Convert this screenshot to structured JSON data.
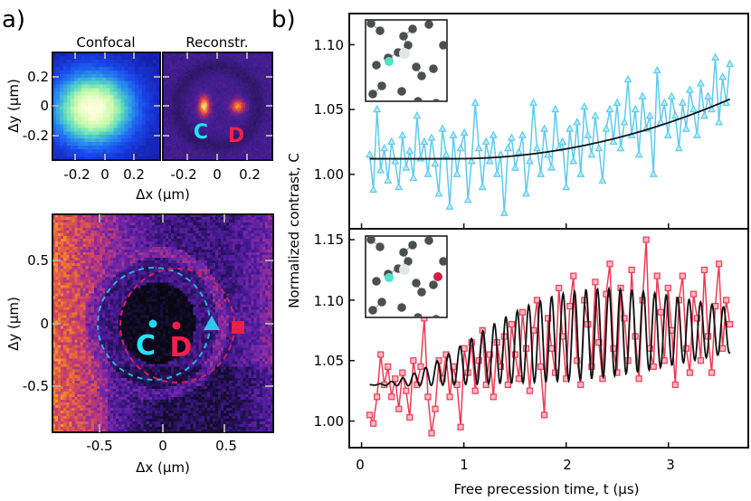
{
  "panel_labels": {
    "a": "a)",
    "b": "b)"
  },
  "panel_a": {
    "confocal": {
      "title": "Confocal",
      "xticks": [
        "-0.2",
        "0",
        "0.2"
      ],
      "yticks": [
        "0.2",
        "0",
        "-0.2"
      ],
      "colormap": "blue-green-yellow"
    },
    "reconstr": {
      "title": "Reconstr.",
      "xticks": [
        "-0.2",
        "0",
        "0.2"
      ],
      "colormap": "inferno",
      "labels": {
        "c": "C",
        "d": "D"
      }
    },
    "top_xlabel": "Δx (µm)",
    "top_ylabel": "Δy (µm)",
    "map": {
      "xticks": [
        "-0.5",
        "0",
        "0.5"
      ],
      "yticks": [
        "0.5",
        "0",
        "-0.5"
      ],
      "xlabel": "Δx (µm)",
      "ylabel": "Δy (µm)",
      "colormap": "plasma",
      "labels": {
        "c": "C",
        "d": "D"
      },
      "markers": [
        {
          "shape": "circle",
          "color": "#27d6ef"
        },
        {
          "shape": "circle",
          "color": "#ee1f46"
        },
        {
          "shape": "triangle",
          "color": "#33c6ec"
        },
        {
          "shape": "square",
          "color": "#ee1f46"
        }
      ]
    }
  },
  "colors": {
    "cyan": "#5ecbef",
    "red": "#ef3a55",
    "fit": "#111111",
    "c_label": "#22e5f5",
    "d_label": "#f0204b"
  },
  "chart_data": [
    {
      "type": "line",
      "panel": "b-top",
      "ylabel": "Normalized contrast, C",
      "xlabel": "Free precession time, t (µs)",
      "ylim": [
        0.958,
        1.124
      ],
      "xlim": [
        -0.12,
        3.78
      ],
      "yticks": [
        "1.00",
        "1.05",
        "1.10"
      ],
      "ytick_values": [
        1.0,
        1.05,
        1.1
      ],
      "xtick_values": [
        0,
        1,
        2,
        3
      ],
      "t_range": [
        0.08,
        3.6
      ],
      "marker": "triangle",
      "color": "#5ecbef",
      "y": [
        1.015,
        0.988,
        1.05,
        1.003,
        1.02,
        0.995,
        1.025,
        1.01,
        0.99,
        1.03,
        1.005,
        1.018,
        0.997,
        1.045,
        1.012,
        1.025,
        1.0,
        1.028,
        1.008,
        0.985,
        1.035,
        1.015,
        0.975,
        1.03,
        1.0,
        1.02,
        1.032,
        0.98,
        1.01,
        1.055,
        1.02,
        0.99,
        1.025,
        1.01,
        1.03,
        1.0,
        1.015,
        0.97,
        1.02,
        1.028,
        1.005,
        1.017,
        1.03,
        0.985,
        1.01,
        1.055,
        1.02,
        1.0,
        1.035,
        1.015,
        1.005,
        1.05,
        1.02,
        1.025,
        0.99,
        1.035,
        1.01,
        1.04,
        1.0,
        1.052,
        1.03,
        1.015,
        1.045,
        1.02,
        0.995,
        1.035,
        1.05,
        1.025,
        1.055,
        1.02,
        1.04,
        1.073,
        1.03,
        1.05,
        1.015,
        1.06,
        1.035,
        1.045,
        1.0,
        1.08,
        1.04,
        1.055,
        1.03,
        1.06,
        1.045,
        1.02,
        1.055,
        1.035,
        1.065,
        1.05,
        1.03,
        1.07,
        1.045,
        1.06,
        1.05,
        1.09,
        1.04,
        1.075,
        1.055,
        1.085
      ],
      "fit": {
        "form": "quadratic onset",
        "baseline": 1.012,
        "end_value": 1.058
      }
    },
    {
      "type": "line",
      "panel": "b-bottom",
      "ylim": [
        0.978,
        1.159
      ],
      "xlim": [
        -0.12,
        3.78
      ],
      "yticks": [
        "1.00",
        "1.05",
        "1.10",
        "1.15"
      ],
      "ytick_values": [
        1.0,
        1.05,
        1.1,
        1.15
      ],
      "xticks": [
        "0",
        "1",
        "2",
        "3"
      ],
      "xtick_values": [
        0,
        1,
        2,
        3
      ],
      "t_range": [
        0.08,
        3.6
      ],
      "marker": "square",
      "color": "#ef3a55",
      "y": [
        1.005,
        0.998,
        1.02,
        1.055,
        1.03,
        1.045,
        1.02,
        1.035,
        1.01,
        1.04,
        1.025,
        1.003,
        1.05,
        1.03,
        1.045,
        1.085,
        1.02,
        0.99,
        1.01,
        1.05,
        1.035,
        1.055,
        1.02,
        1.045,
        1.03,
        0.995,
        1.06,
        1.04,
        1.065,
        1.025,
        1.05,
        1.075,
        1.03,
        1.055,
        1.02,
        1.065,
        1.045,
        1.07,
        1.03,
        1.08,
        1.055,
        1.035,
        1.09,
        1.06,
        1.025,
        1.075,
        1.1,
        1.045,
        1.005,
        1.085,
        1.06,
        1.04,
        1.11,
        1.07,
        1.035,
        1.095,
        1.12,
        1.05,
        1.03,
        1.1,
        1.08,
        1.045,
        1.115,
        1.065,
        1.035,
        1.105,
        1.13,
        1.06,
        1.04,
        1.11,
        1.085,
        1.05,
        1.125,
        1.07,
        1.035,
        1.1,
        1.15,
        1.06,
        1.045,
        1.12,
        1.09,
        1.05,
        1.11,
        1.075,
        1.03,
        1.1,
        1.12,
        1.06,
        1.04,
        1.105,
        1.085,
        1.05,
        1.125,
        1.07,
        1.04,
        1.095,
        1.13,
        1.06,
        1.1,
        1.08
      ],
      "fit": {
        "form": "damped oscillation",
        "baseline": 1.03,
        "plateau": 1.075,
        "period_us": 0.112,
        "max_amplitude": 0.037
      }
    }
  ]
}
